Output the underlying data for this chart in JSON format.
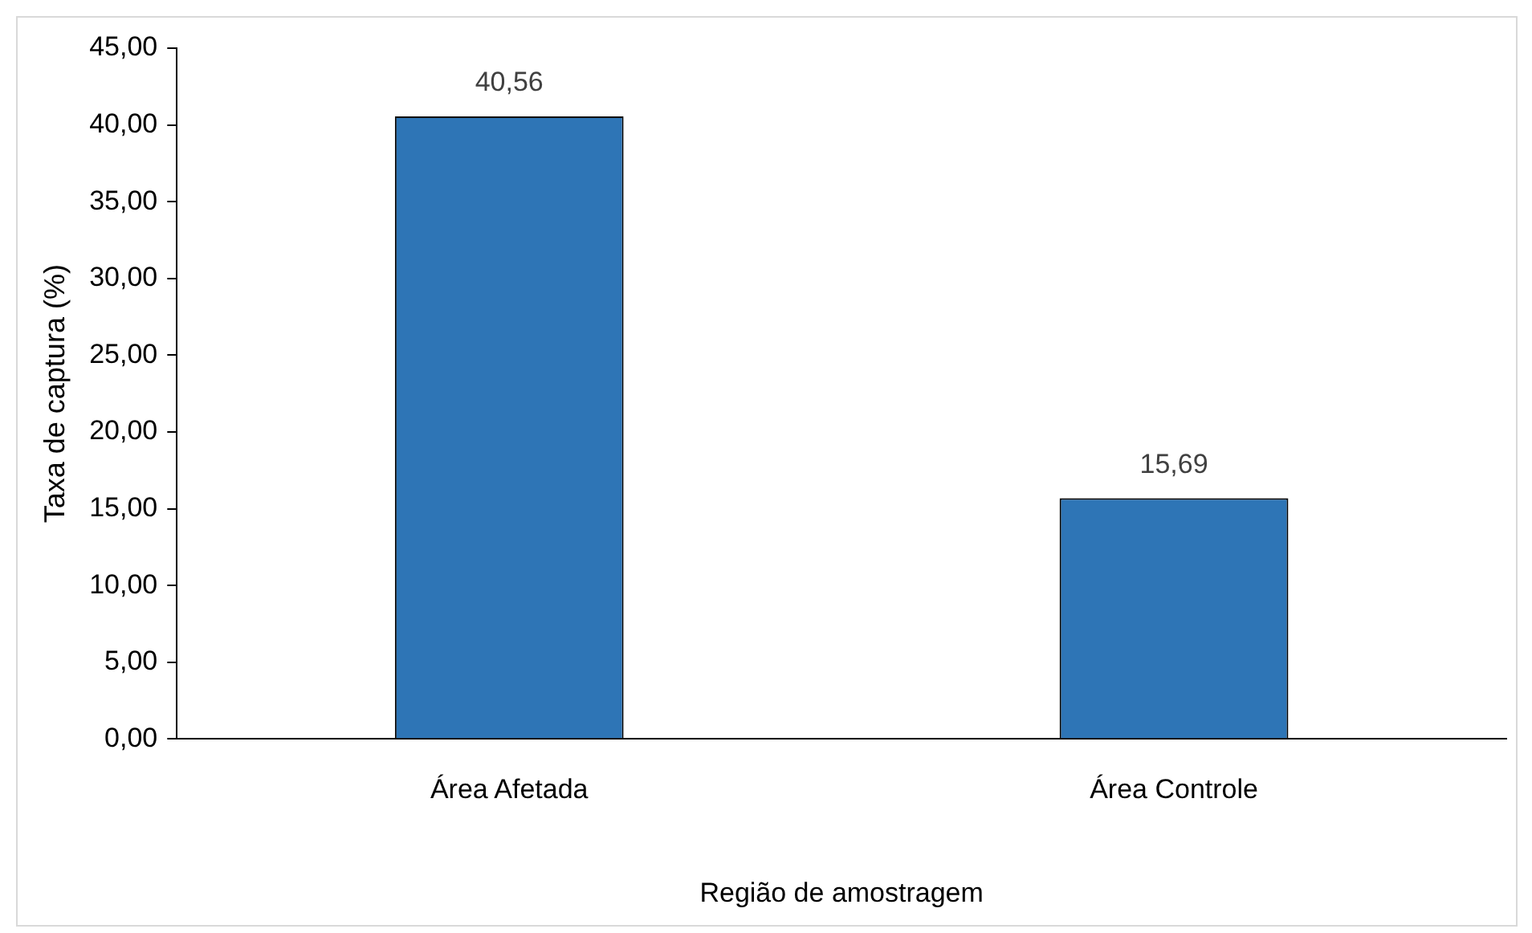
{
  "chart_data": {
    "type": "bar",
    "xlabel": "Região de amostragem",
    "ylabel": "Taxa de captura (%)",
    "categories": [
      "Área Afetada",
      "Área Controle"
    ],
    "values": [
      40.56,
      15.69
    ],
    "value_labels": [
      "40,56",
      "15,69"
    ],
    "color": "#2e75b6",
    "ylim": [
      0,
      45
    ],
    "yticks": [
      {
        "value": 0,
        "label": "0,00"
      },
      {
        "value": 5,
        "label": "5,00"
      },
      {
        "value": 10,
        "label": "10,00"
      },
      {
        "value": 15,
        "label": "15,00"
      },
      {
        "value": 20,
        "label": "20,00"
      },
      {
        "value": 25,
        "label": "25,00"
      },
      {
        "value": 30,
        "label": "30,00"
      },
      {
        "value": 35,
        "label": "35,00"
      },
      {
        "value": 40,
        "label": "40,00"
      },
      {
        "value": 45,
        "label": "45,00"
      }
    ],
    "grid": false,
    "legend": false
  }
}
